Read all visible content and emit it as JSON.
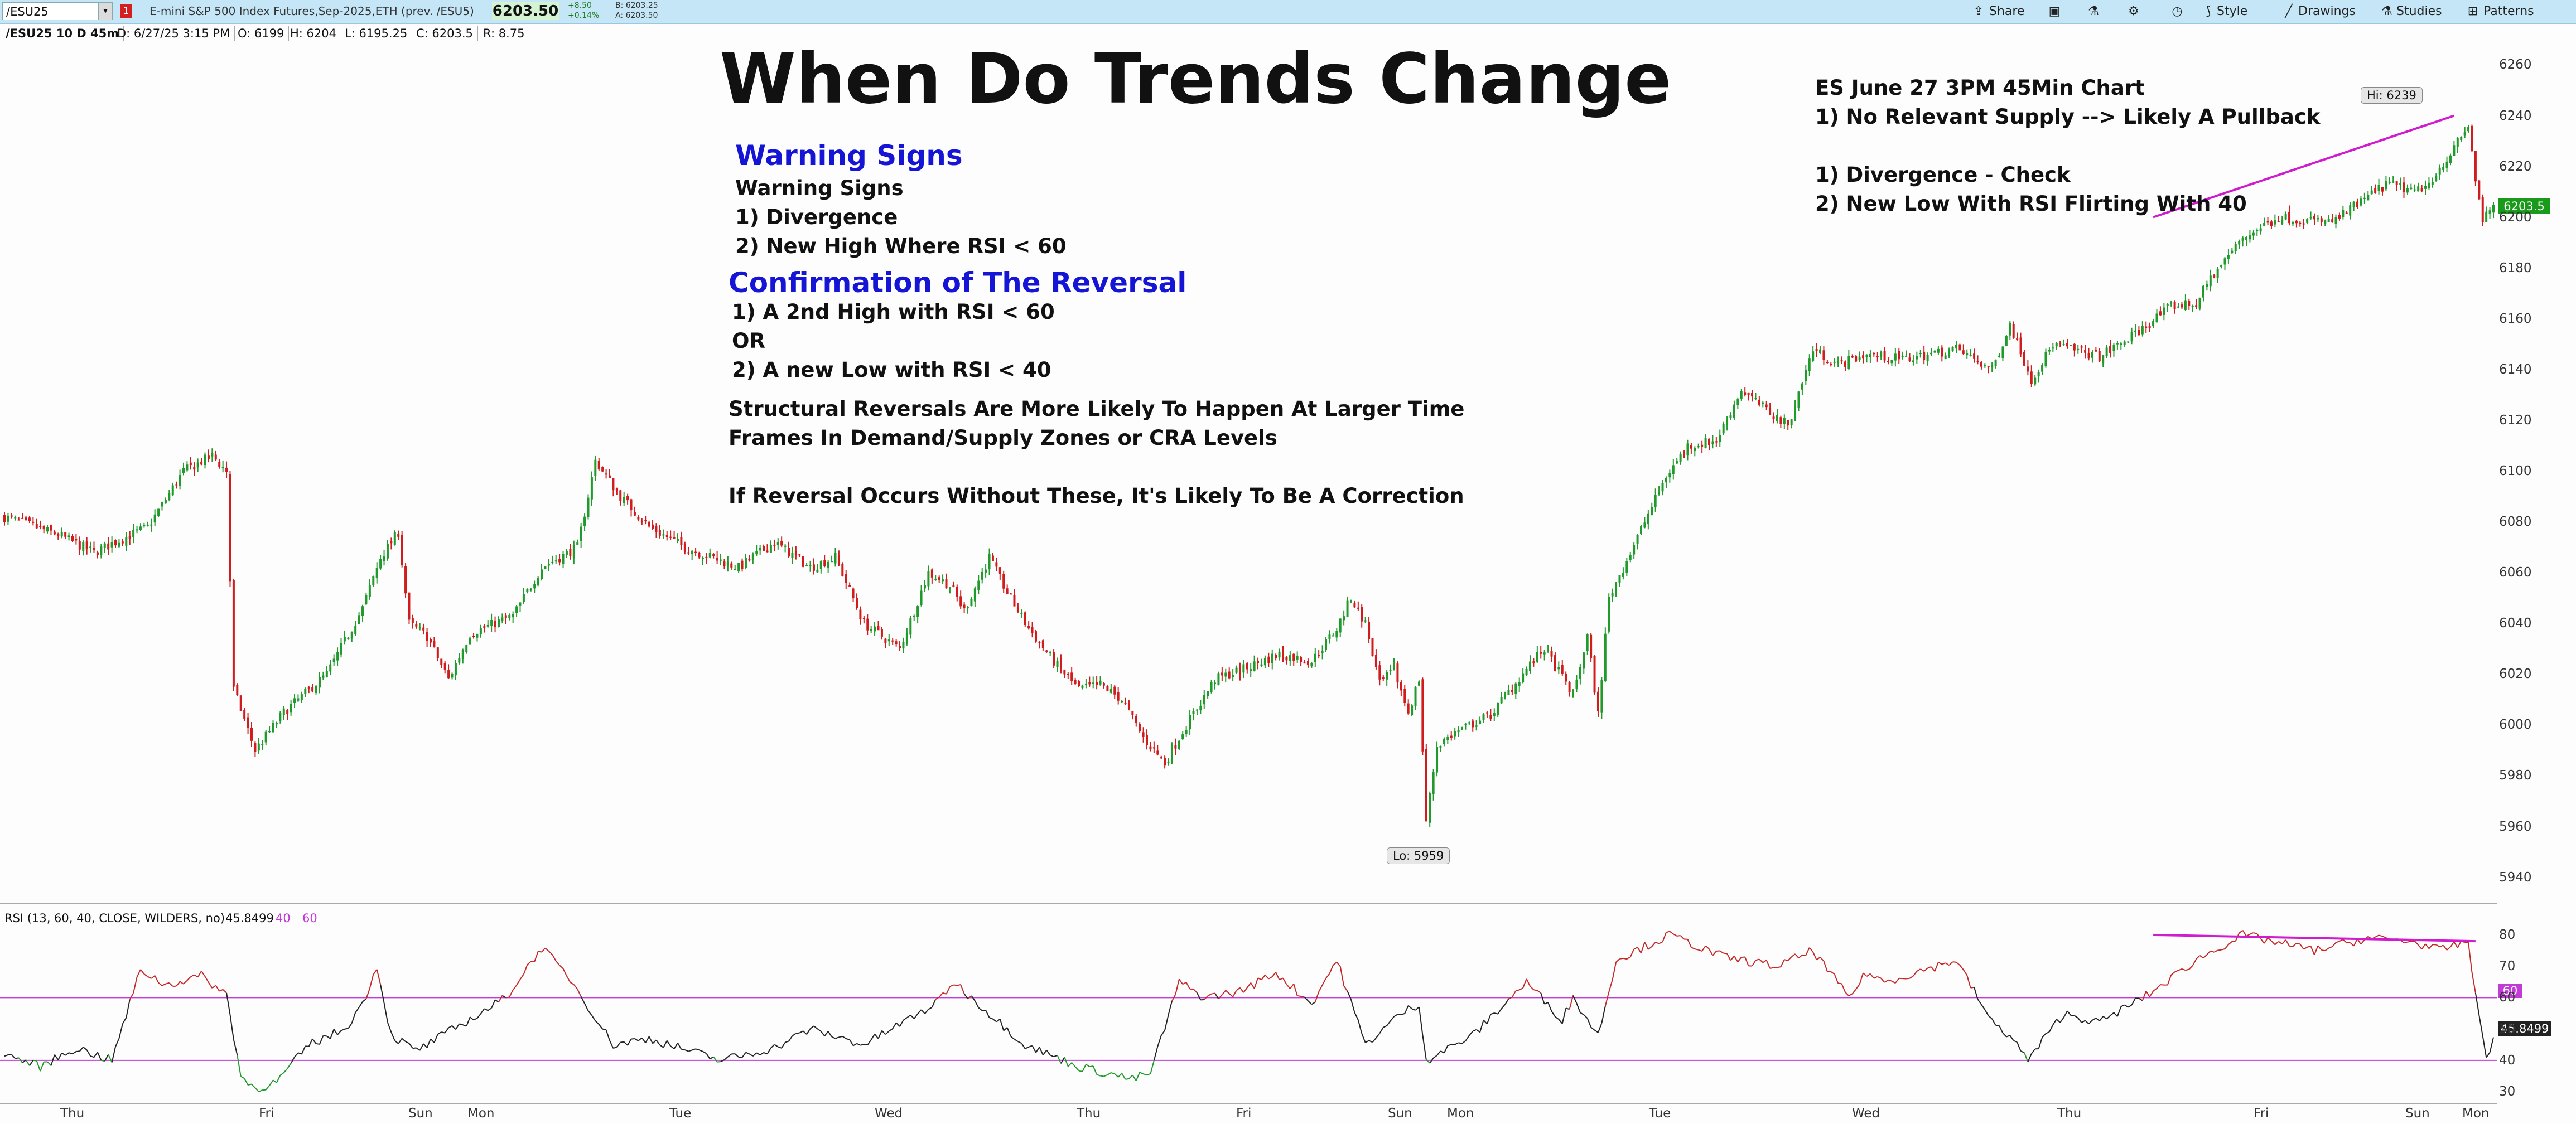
{
  "toolbar": {
    "symbol": "/ESU25",
    "badge": "1",
    "description": "E-mini S&P 500 Index Futures,Sep-2025,ETH (prev. /ESU5)",
    "last": "6203.50",
    "change": "+8.50",
    "change_pct": "+0.14%",
    "bid": "B: 6203.25",
    "ask": "A: 6203.50",
    "share": "Share",
    "style": "Style",
    "drawings": "Drawings",
    "studies": "Studies",
    "patterns": "Patterns"
  },
  "infobar": {
    "symbol": "/ESU25 10 D 45m",
    "date": "D: 6/27/25 3:15 PM",
    "open": "O: 6199",
    "high": "H: 6204",
    "low": "L: 6195.25",
    "close": "C: 6203.5",
    "range": "R: 8.75"
  },
  "annotations": {
    "title": "When Do Trends Change",
    "warning_heading": "Warning Signs",
    "warning_sub": "Warning Signs",
    "warning_1": "1) Divergence",
    "warning_2": "2) New High Where RSI < 60",
    "confirm_heading": "Confirmation of The Reversal",
    "confirm_1": "1) A 2nd High with RSI < 60",
    "confirm_or": "OR",
    "confirm_2": "2) A new Low with RSI < 40",
    "structural_1": "Structural Reversals Are More Likely To Happen At Larger Time",
    "structural_2": "Frames In Demand/Supply Zones or CRA Levels",
    "correction": "If Reversal Occurs Without These, It's Likely To Be A Correction",
    "es_title": "ES June 27 3PM 45Min Chart",
    "es_1": "1) No Relevant Supply --> Likely A Pullback",
    "es_2": "1) Divergence - Check",
    "es_3": "2) New Low With RSI Flirting With 40"
  },
  "chart_data": [
    {
      "type": "candlestick",
      "y_ticks": [
        5940,
        5960,
        5980,
        6000,
        6020,
        6040,
        6060,
        6080,
        6100,
        6120,
        6140,
        6160,
        6180,
        6200,
        6220,
        6240,
        6260
      ],
      "ylim": [
        5932,
        6268
      ],
      "x_ticks": [
        "Thu",
        "Fri",
        "Sun",
        "Mon",
        "Tue",
        "Wed",
        "Thu",
        "Fri",
        "Sun",
        "Mon",
        "Tue",
        "Wed",
        "Thu",
        "Fri",
        "Sun",
        "Mon"
      ],
      "last_price": "6203.5",
      "high_label": "Hi: 6239",
      "low_label": "Lo: 5959",
      "up_color": "#1f9a2b",
      "down_color": "#d01c1c",
      "close_path": [
        [
          0,
          6082
        ],
        [
          15,
          6075
        ],
        [
          25,
          6068
        ],
        [
          40,
          6078
        ],
        [
          50,
          6100
        ],
        [
          58,
          6106
        ],
        [
          62,
          6100
        ],
        [
          64,
          6014
        ],
        [
          70,
          5990
        ],
        [
          78,
          6005
        ],
        [
          90,
          6020
        ],
        [
          100,
          6046
        ],
        [
          105,
          6066
        ],
        [
          110,
          6076
        ],
        [
          113,
          6040
        ],
        [
          118,
          6035
        ],
        [
          124,
          6018
        ],
        [
          130,
          6036
        ],
        [
          142,
          6043
        ],
        [
          150,
          6062
        ],
        [
          160,
          6070
        ],
        [
          165,
          6104
        ],
        [
          172,
          6090
        ],
        [
          180,
          6078
        ],
        [
          190,
          6070
        ],
        [
          205,
          6062
        ],
        [
          215,
          6072
        ],
        [
          225,
          6062
        ],
        [
          232,
          6066
        ],
        [
          240,
          6040
        ],
        [
          250,
          6030
        ],
        [
          258,
          6060
        ],
        [
          264,
          6055
        ],
        [
          268,
          6045
        ],
        [
          275,
          6066
        ],
        [
          280,
          6052
        ],
        [
          286,
          6038
        ],
        [
          293,
          6025
        ],
        [
          300,
          6014
        ],
        [
          306,
          6016
        ],
        [
          312,
          6010
        ],
        [
          318,
          5995
        ],
        [
          324,
          5985
        ],
        [
          330,
          6000
        ],
        [
          338,
          6018
        ],
        [
          346,
          6022
        ],
        [
          356,
          6028
        ],
        [
          365,
          6025
        ],
        [
          372,
          6038
        ],
        [
          376,
          6050
        ],
        [
          380,
          6040
        ],
        [
          384,
          6016
        ],
        [
          388,
          6022
        ],
        [
          392,
          6005
        ],
        [
          395,
          6018
        ],
        [
          397,
          5962
        ],
        [
          400,
          5992
        ],
        [
          405,
          5997
        ],
        [
          415,
          6004
        ],
        [
          425,
          6022
        ],
        [
          430,
          6030
        ],
        [
          438,
          6012
        ],
        [
          442,
          6035
        ],
        [
          445,
          6004
        ],
        [
          448,
          6050
        ],
        [
          452,
          6062
        ],
        [
          458,
          6080
        ],
        [
          464,
          6098
        ],
        [
          470,
          6110
        ],
        [
          478,
          6112
        ],
        [
          485,
          6132
        ],
        [
          492,
          6124
        ],
        [
          498,
          6118
        ],
        [
          505,
          6148
        ],
        [
          512,
          6142
        ],
        [
          520,
          6146
        ],
        [
          530,
          6144
        ],
        [
          545,
          6148
        ],
        [
          555,
          6140
        ],
        [
          560,
          6158
        ],
        [
          566,
          6136
        ],
        [
          572,
          6150
        ],
        [
          585,
          6145
        ],
        [
          595,
          6154
        ],
        [
          605,
          6165
        ],
        [
          612,
          6166
        ],
        [
          616,
          6176
        ],
        [
          625,
          6192
        ],
        [
          635,
          6200
        ],
        [
          650,
          6198
        ],
        [
          665,
          6213
        ],
        [
          675,
          6210
        ],
        [
          683,
          6225
        ],
        [
          688,
          6236
        ],
        [
          690,
          6215
        ],
        [
          692,
          6199
        ],
        [
          695,
          6203
        ]
      ]
    },
    {
      "type": "line",
      "series": [
        {
          "name": "RSI (13, 60, 40, CLOSE, WILDERS, no)",
          "last": "45.8499"
        }
      ],
      "levels": [
        40,
        60
      ],
      "y_ticks": [
        30,
        40,
        50,
        60,
        70,
        80
      ],
      "ylim": [
        27,
        83
      ],
      "divergence": {
        "price_from": 6200,
        "price_to": 6240,
        "rsi_from": 80,
        "rsi_to": 78
      },
      "path": [
        [
          0,
          42
        ],
        [
          10,
          38
        ],
        [
          20,
          44
        ],
        [
          30,
          40
        ],
        [
          38,
          69
        ],
        [
          45,
          64
        ],
        [
          55,
          67
        ],
        [
          62,
          61
        ],
        [
          66,
          35
        ],
        [
          70,
          31
        ],
        [
          76,
          33
        ],
        [
          85,
          45
        ],
        [
          95,
          50
        ],
        [
          100,
          58
        ],
        [
          104,
          70
        ],
        [
          108,
          48
        ],
        [
          115,
          43
        ],
        [
          130,
          53
        ],
        [
          140,
          60
        ],
        [
          150,
          76
        ],
        [
          158,
          66
        ],
        [
          170,
          45
        ],
        [
          180,
          47
        ],
        [
          200,
          40
        ],
        [
          215,
          44
        ],
        [
          225,
          50
        ],
        [
          240,
          45
        ],
        [
          260,
          58
        ],
        [
          265,
          65
        ],
        [
          275,
          55
        ],
        [
          285,
          45
        ],
        [
          300,
          38
        ],
        [
          315,
          34
        ],
        [
          320,
          36
        ],
        [
          328,
          65
        ],
        [
          335,
          60
        ],
        [
          345,
          62
        ],
        [
          355,
          68
        ],
        [
          365,
          58
        ],
        [
          372,
          72
        ],
        [
          380,
          45
        ],
        [
          390,
          55
        ],
        [
          395,
          58
        ],
        [
          397,
          40
        ],
        [
          410,
          48
        ],
        [
          425,
          65
        ],
        [
          435,
          53
        ],
        [
          438,
          60
        ],
        [
          445,
          48
        ],
        [
          450,
          72
        ],
        [
          465,
          80
        ],
        [
          480,
          73
        ],
        [
          495,
          70
        ],
        [
          505,
          75
        ],
        [
          515,
          60
        ],
        [
          520,
          68
        ],
        [
          525,
          65
        ],
        [
          545,
          72
        ],
        [
          555,
          52
        ],
        [
          560,
          48
        ],
        [
          565,
          40
        ],
        [
          575,
          55
        ],
        [
          585,
          52
        ],
        [
          600,
          62
        ],
        [
          612,
          72
        ],
        [
          625,
          80
        ],
        [
          645,
          75
        ],
        [
          660,
          79
        ],
        [
          672,
          78
        ],
        [
          680,
          75
        ],
        [
          688,
          78
        ],
        [
          690,
          60
        ],
        [
          693,
          42
        ],
        [
          695,
          46
        ]
      ]
    }
  ]
}
